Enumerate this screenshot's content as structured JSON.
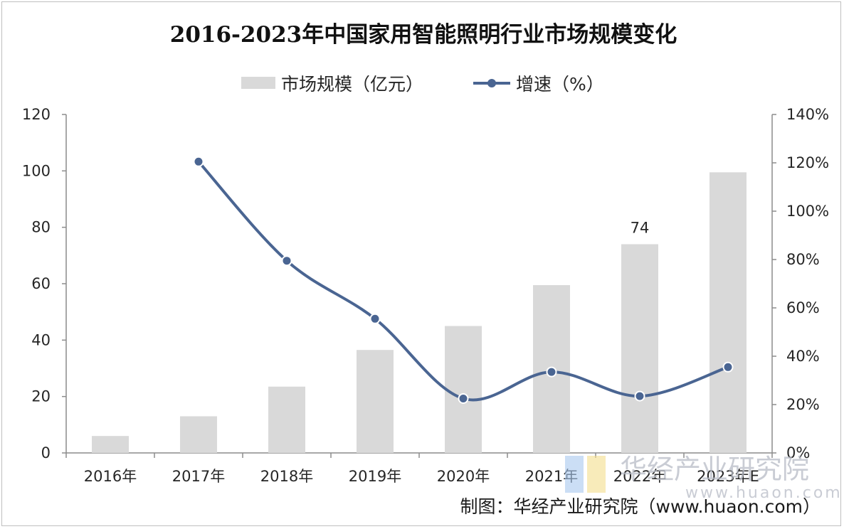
{
  "chart_data": {
    "type": "bar",
    "title": "2016-2023年中国家用智能照明行业市场规模变化",
    "categories": [
      "2016年",
      "2017年",
      "2018年",
      "2019年",
      "2020年",
      "2021年",
      "2022年",
      "2023年E"
    ],
    "series": [
      {
        "name": "市场规模（亿元）",
        "type": "bar",
        "axis": "left",
        "values": [
          6,
          13,
          23.5,
          36.5,
          45,
          59.5,
          74,
          99.5
        ],
        "data_labels": [
          null,
          null,
          null,
          null,
          null,
          null,
          "74",
          null
        ]
      },
      {
        "name": "增速（%）",
        "type": "line",
        "axis": "right",
        "values": [
          null,
          120.5,
          79.5,
          55.5,
          22.5,
          33.5,
          23.5,
          35.5
        ]
      }
    ],
    "y_left": {
      "range": [
        0,
        120
      ],
      "ticks": [
        "0",
        "20",
        "40",
        "60",
        "80",
        "100",
        "120"
      ]
    },
    "y_right": {
      "range": [
        0,
        140
      ],
      "ticks": [
        "0%",
        "20%",
        "40%",
        "60%",
        "80%",
        "100%",
        "120%",
        "140%"
      ]
    },
    "grid": false,
    "legend_position": "top-center",
    "colors": {
      "bar": "#d9d9d9",
      "line": "#4a6592",
      "axis": "#8c8c8c"
    }
  },
  "watermark": {
    "name": "华经产业研究院",
    "url": "www.huaon.com"
  },
  "source": "制图：华经产业研究院（www.huaon.com）"
}
